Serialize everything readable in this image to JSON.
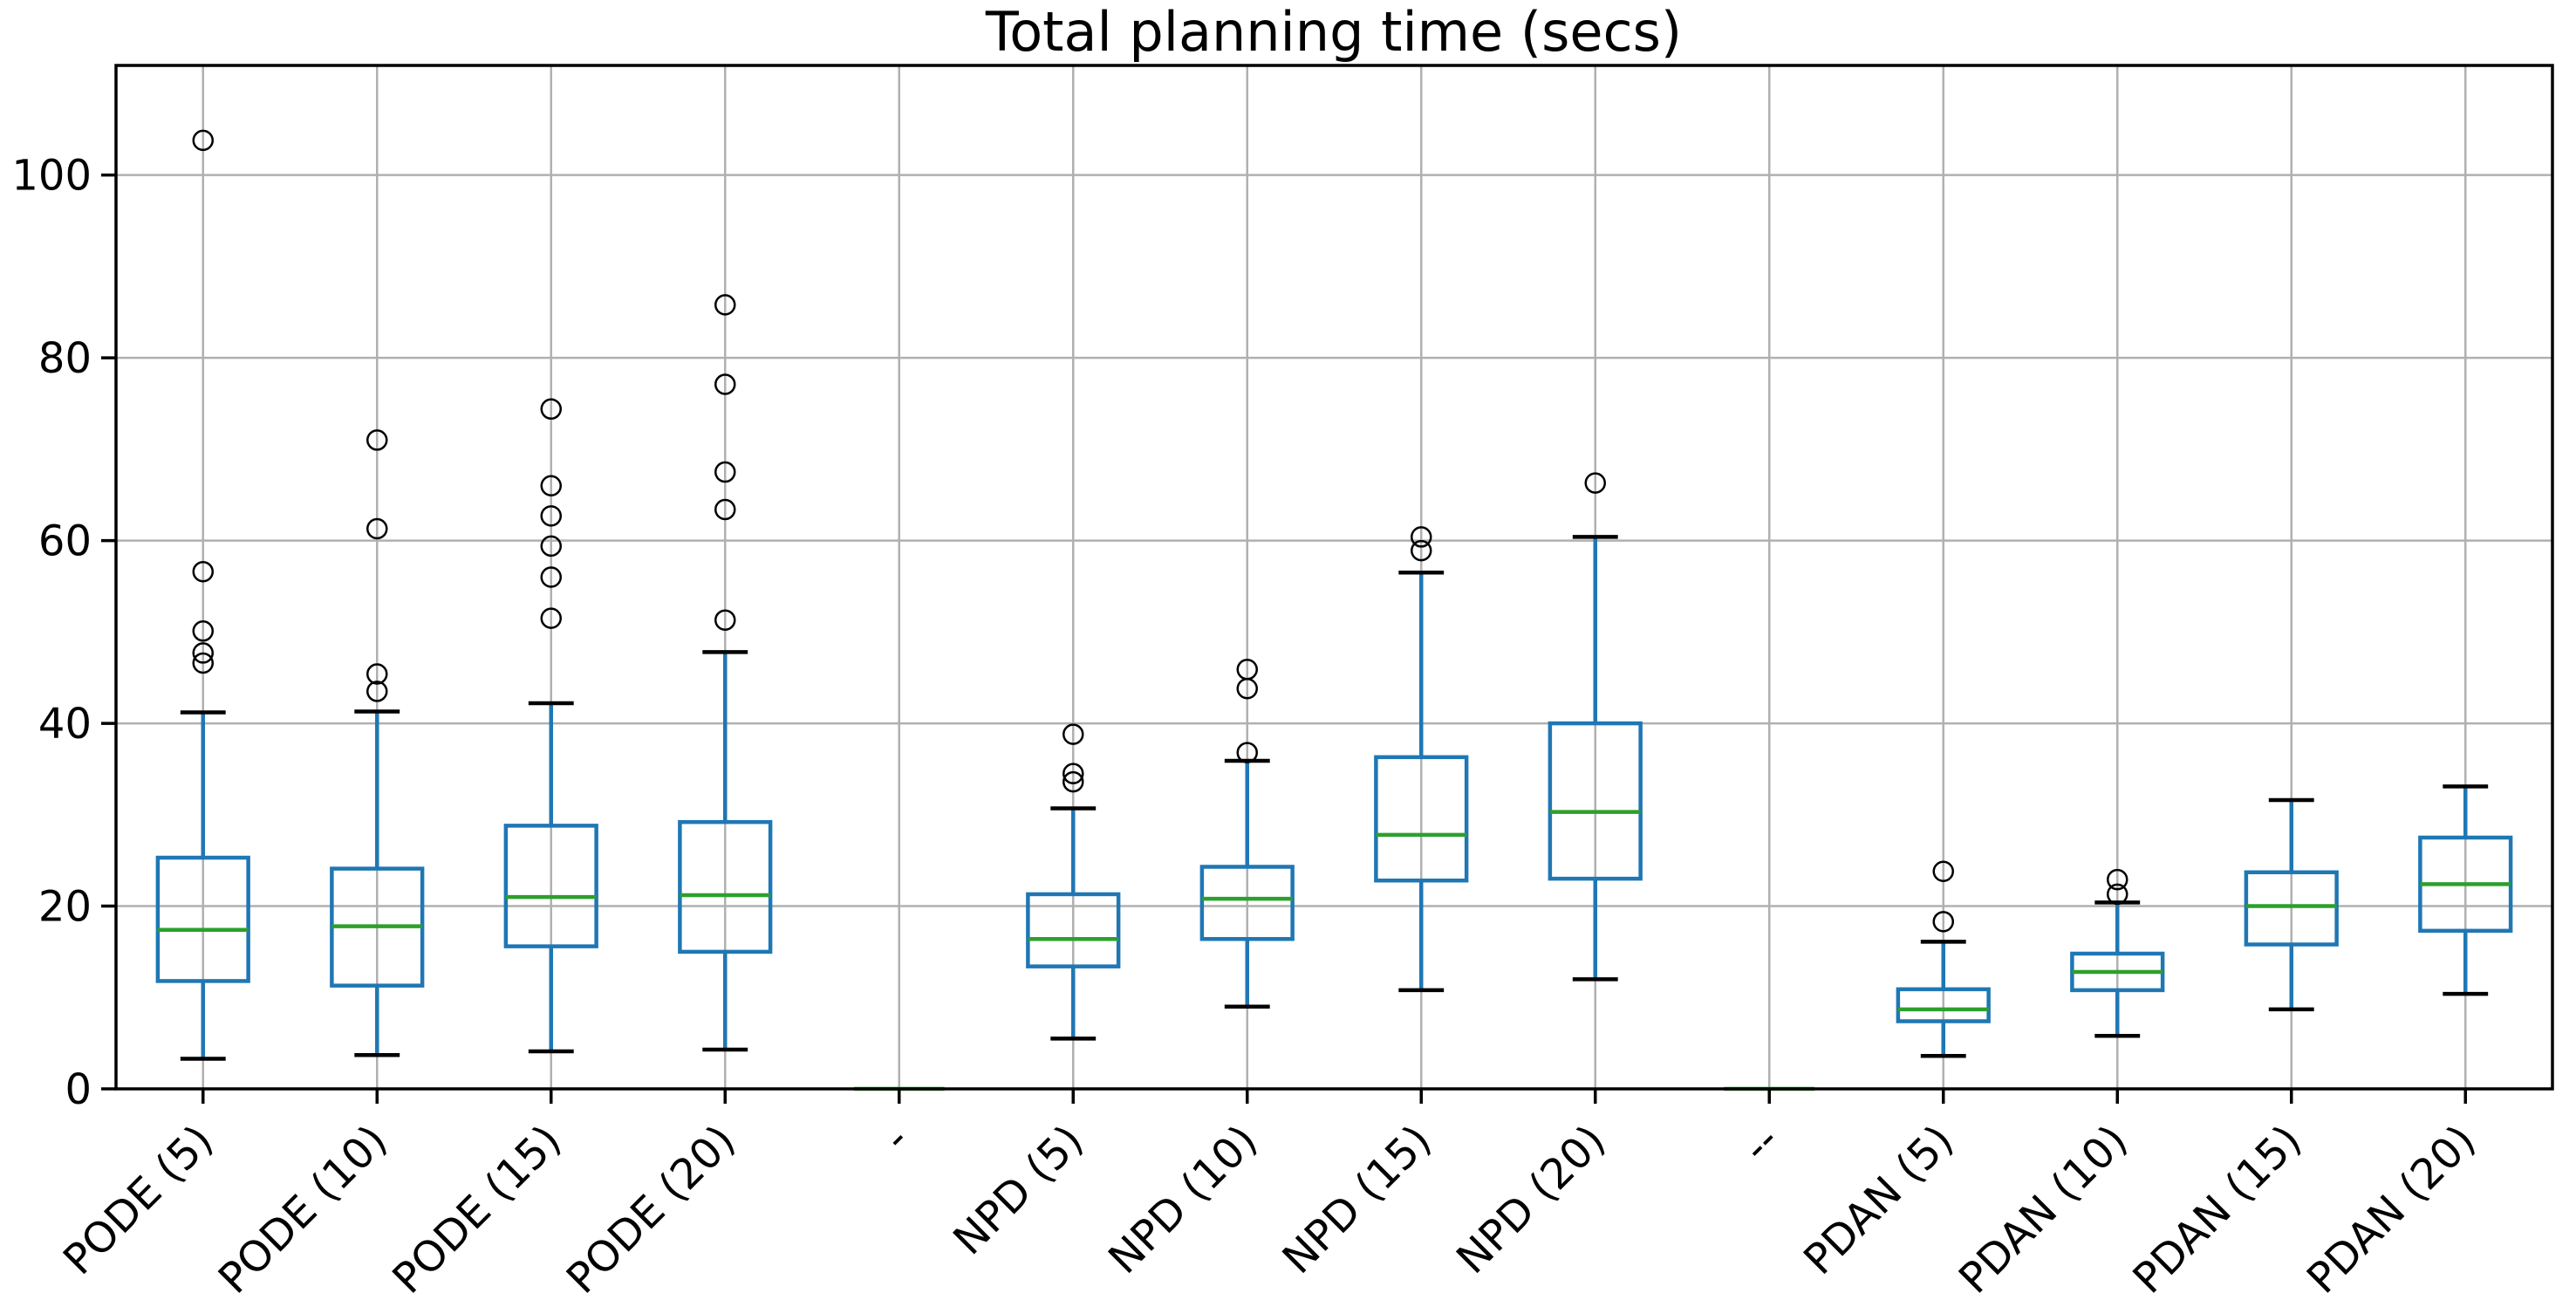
{
  "chart_data": {
    "type": "boxplot",
    "title": "Total planning time (secs)",
    "xlabel": "",
    "ylabel": "",
    "ylim": [
      0,
      112
    ],
    "yticks": [
      0,
      20,
      40,
      60,
      80,
      100
    ],
    "grid": true,
    "legend_position": "none",
    "x_tick_rotation": 45,
    "colors": {
      "box": "#1f77b4",
      "median": "#2ca02c",
      "whisker": "#1f77b4",
      "cap": "#000000",
      "flier": "#000000",
      "grid": "#b0b0b0",
      "axis": "#000000",
      "text": "#000000",
      "background": "#ffffff"
    },
    "categories": [
      "PODE (5)",
      "PODE (10)",
      "PODE (15)",
      "PODE (20)",
      "-",
      "NPD (5)",
      "NPD (10)",
      "NPD (15)",
      "NPD (20)",
      "--",
      "PDAN (5)",
      "PDAN (10)",
      "PDAN (15)",
      "PDAN (20)"
    ],
    "boxes": [
      {
        "label": "PODE (5)",
        "whislo": 3.3,
        "q1": 11.8,
        "med": 17.4,
        "q3": 25.3,
        "whishi": 41.2,
        "fliers": [
          46.6,
          47.7,
          50.1,
          56.6,
          103.8
        ],
        "degenerate": false
      },
      {
        "label": "PODE (10)",
        "whislo": 3.7,
        "q1": 11.3,
        "med": 17.8,
        "q3": 24.1,
        "whishi": 41.3,
        "fliers": [
          43.5,
          45.4,
          61.3,
          71.0
        ],
        "degenerate": false
      },
      {
        "label": "PODE (15)",
        "whislo": 4.1,
        "q1": 15.6,
        "med": 21.0,
        "q3": 28.8,
        "whishi": 42.2,
        "fliers": [
          51.5,
          56.0,
          59.4,
          62.7,
          66.0,
          74.4
        ],
        "degenerate": false
      },
      {
        "label": "PODE (20)",
        "whislo": 4.3,
        "q1": 15.0,
        "med": 21.2,
        "q3": 29.2,
        "whishi": 47.8,
        "fliers": [
          51.3,
          63.4,
          67.5,
          77.1,
          85.8
        ],
        "degenerate": false
      },
      {
        "label": "-",
        "whislo": 0,
        "q1": 0,
        "med": 0,
        "q3": 0,
        "whishi": 0,
        "fliers": [],
        "degenerate": true
      },
      {
        "label": "NPD (5)",
        "whislo": 5.5,
        "q1": 13.4,
        "med": 16.4,
        "q3": 21.3,
        "whishi": 30.7,
        "fliers": [
          33.6,
          34.5,
          38.8
        ],
        "degenerate": false
      },
      {
        "label": "NPD (10)",
        "whislo": 9.0,
        "q1": 16.4,
        "med": 20.8,
        "q3": 24.3,
        "whishi": 35.9,
        "fliers": [
          36.8,
          43.8,
          45.9
        ],
        "degenerate": false
      },
      {
        "label": "NPD (15)",
        "whislo": 10.8,
        "q1": 22.8,
        "med": 27.8,
        "q3": 36.3,
        "whishi": 56.5,
        "fliers": [
          58.9,
          60.4
        ],
        "degenerate": false
      },
      {
        "label": "NPD (20)",
        "whislo": 12.0,
        "q1": 23.0,
        "med": 30.3,
        "q3": 40.0,
        "whishi": 60.4,
        "fliers": [
          66.3
        ],
        "degenerate": false
      },
      {
        "label": "--",
        "whislo": 0,
        "q1": 0,
        "med": 0,
        "q3": 0,
        "whishi": 0,
        "fliers": [],
        "degenerate": true
      },
      {
        "label": "PDAN (5)",
        "whislo": 3.6,
        "q1": 7.4,
        "med": 8.7,
        "q3": 10.9,
        "whishi": 16.1,
        "fliers": [
          18.3,
          23.8
        ],
        "degenerate": false
      },
      {
        "label": "PDAN (10)",
        "whislo": 5.8,
        "q1": 10.8,
        "med": 12.8,
        "q3": 14.8,
        "whishi": 20.4,
        "fliers": [
          21.3,
          22.9
        ],
        "degenerate": false
      },
      {
        "label": "PDAN (15)",
        "whislo": 8.7,
        "q1": 15.8,
        "med": 20.0,
        "q3": 23.7,
        "whishi": 31.6,
        "fliers": [],
        "degenerate": false
      },
      {
        "label": "PDAN (20)",
        "whislo": 10.4,
        "q1": 17.3,
        "med": 22.4,
        "q3": 27.5,
        "whishi": 33.1,
        "fliers": [],
        "degenerate": false
      }
    ]
  }
}
